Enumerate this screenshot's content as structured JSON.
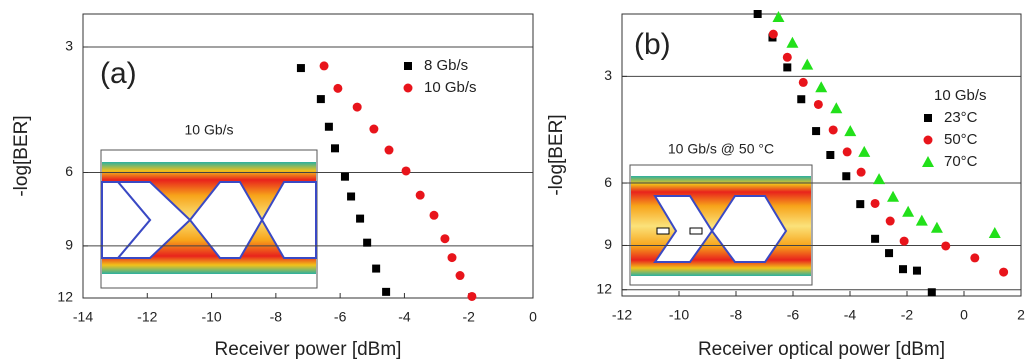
{
  "chart_data": [
    {
      "type": "scatter",
      "panel_label": "(a)",
      "inset_label": "10 Gb/s",
      "x_label": "Receiver power [dBm]",
      "y_label": "-log[BER]",
      "yscale": "log",
      "grid": "y",
      "xlim": [
        -14,
        0
      ],
      "xticks": [
        -14,
        -12,
        -10,
        -8,
        -6,
        -4,
        -2,
        0
      ],
      "ylim": [
        12,
        2.5
      ],
      "yticks": [
        3,
        6,
        9,
        12
      ],
      "series": [
        {
          "name": "8 Gb/s",
          "color": "#000000",
          "marker": "square",
          "x": [
            -7.22,
            -6.6,
            -6.35,
            -6.16,
            -5.85,
            -5.66,
            -5.38,
            -5.16,
            -4.88,
            -4.57
          ],
          "values": [
            3.37,
            4.0,
            4.66,
            5.25,
            6.14,
            6.85,
            7.74,
            8.84,
            10.2,
            11.6
          ]
        },
        {
          "name": "10 Gb/s",
          "color": "#e8141b",
          "marker": "circle",
          "x": [
            -6.5,
            -6.07,
            -5.47,
            -4.95,
            -4.48,
            -3.95,
            -3.51,
            -3.08,
            -2.74,
            -2.52,
            -2.27,
            -1.9
          ],
          "values": [
            3.33,
            3.77,
            4.18,
            4.72,
            5.3,
            5.95,
            6.8,
            7.6,
            8.65,
            9.6,
            10.6,
            11.9
          ]
        }
      ]
    },
    {
      "type": "scatter",
      "panel_label": "(b)",
      "inset_label": "10 Gb/s @ 50 °C",
      "x_label": "Receiver optical power [dBm]",
      "y_label": "-log[BER]",
      "legend_title": "10 Gb/s",
      "yscale": "log",
      "grid": "y",
      "xlim": [
        -12,
        2
      ],
      "xticks": [
        -12,
        -10,
        -8,
        -6,
        -4,
        -2,
        0,
        2
      ],
      "ylim": [
        12.5,
        2
      ],
      "yticks": [
        3,
        6,
        9,
        12
      ],
      "series": [
        {
          "name": "23°C",
          "color": "#000000",
          "marker": "square",
          "x": [
            -7.24,
            -6.72,
            -6.2,
            -5.71,
            -5.19,
            -4.69,
            -4.13,
            -3.64,
            -3.12,
            -2.63,
            -2.14,
            -1.65,
            -1.13
          ],
          "values": [
            2.0,
            2.33,
            2.83,
            3.48,
            4.28,
            5.0,
            5.74,
            6.88,
            8.62,
            9.46,
            10.5,
            10.6,
            12.2
          ]
        },
        {
          "name": "50°C",
          "color": "#e8141b",
          "marker": "circle",
          "x": [
            -6.69,
            -6.2,
            -5.64,
            -5.11,
            -4.59,
            -4.1,
            -3.61,
            -3.12,
            -2.59,
            -2.1,
            -0.64,
            0.38,
            1.39
          ],
          "values": [
            2.28,
            2.65,
            3.12,
            3.6,
            4.25,
            4.9,
            5.59,
            6.85,
            7.68,
            8.75,
            9.03,
            9.76,
            10.7
          ]
        },
        {
          "name": "70°C",
          "color": "#22e01a",
          "marker": "triangle",
          "x": [
            -6.51,
            -6.02,
            -5.5,
            -5.01,
            -4.48,
            -3.99,
            -3.5,
            -2.98,
            -2.49,
            -1.96,
            -1.48,
            -0.95,
            1.08
          ],
          "values": [
            2.04,
            2.41,
            2.78,
            3.22,
            3.69,
            4.28,
            4.9,
            5.85,
            6.56,
            7.23,
            7.66,
            8.02,
            8.3
          ]
        }
      ]
    }
  ]
}
